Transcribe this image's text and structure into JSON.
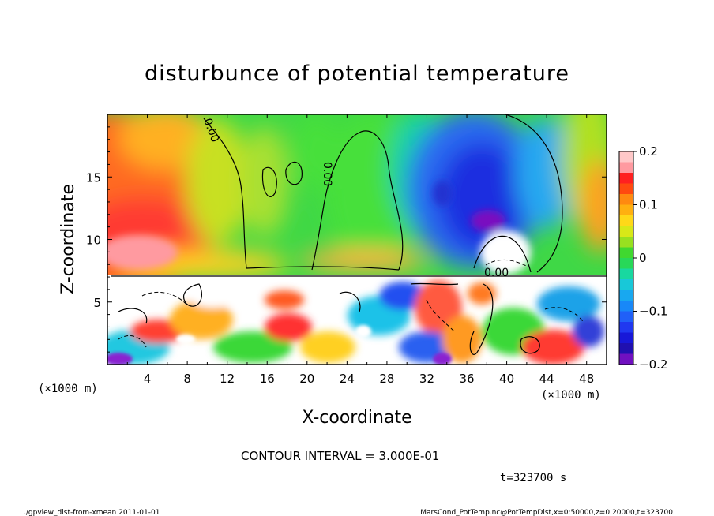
{
  "chart_data": {
    "type": "heatmap",
    "title": "disturbunce of potential temperature",
    "xlabel": "X-coordinate",
    "ylabel": "Z-coordinate",
    "x_unit_label": "(×1000 m)",
    "z_unit_label": "(×1000 m)",
    "xlim": [
      0,
      50
    ],
    "ylim": [
      0,
      20
    ],
    "x_ticks": [
      4,
      8,
      12,
      16,
      20,
      24,
      28,
      32,
      36,
      40,
      44,
      48
    ],
    "y_ticks": [
      5,
      10,
      15
    ],
    "colorbar": {
      "min": -0.2,
      "max": 0.2,
      "ticks": [
        0.2,
        0.1,
        0,
        -0.1,
        -0.2
      ],
      "tick_labels": [
        "0.2",
        "0.1",
        "0",
        "−0.1",
        "−0.2"
      ]
    },
    "contour_labels": [
      "0.00",
      "0.00",
      "0.00"
    ],
    "contour_interval_text": "CONTOUR INTERVAL = 3.000E-01",
    "time_text": "t=323700 s"
  },
  "footer": {
    "left": "./gpview_dist-from-xmean  2011-01-01",
    "right": "MarsCond_PotTemp.nc@PotTempDist,x=0:50000,z=0:20000,t=323700"
  }
}
